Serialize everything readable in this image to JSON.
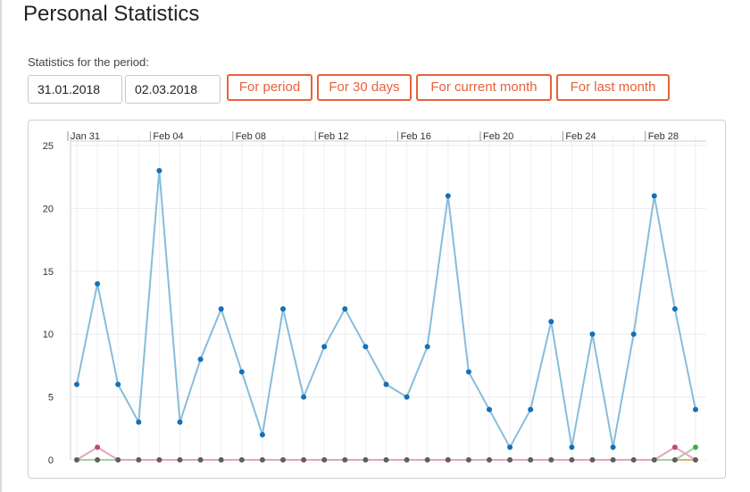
{
  "page": {
    "title": "Personal Statistics"
  },
  "filter": {
    "label": "Statistics for the period:",
    "date_from": "31.01.2018",
    "date_to": "02.03.2018",
    "buttons": {
      "for_period": "For period",
      "for_30_days": "For 30 days",
      "for_current_month": "For current month",
      "for_last_month": "For last month"
    }
  },
  "chart_data": {
    "type": "line",
    "title": "",
    "xlabel": "",
    "ylabel": "",
    "x_axis_position": "top",
    "ylim": [
      0,
      25
    ],
    "y_ticks": [
      0,
      5,
      10,
      15,
      20,
      25
    ],
    "grid": true,
    "x": [
      "Jan 31",
      "Feb 01",
      "Feb 02",
      "Feb 03",
      "Feb 04",
      "Feb 05",
      "Feb 06",
      "Feb 07",
      "Feb 08",
      "Feb 09",
      "Feb 10",
      "Feb 11",
      "Feb 12",
      "Feb 13",
      "Feb 14",
      "Feb 15",
      "Feb 16",
      "Feb 17",
      "Feb 18",
      "Feb 19",
      "Feb 20",
      "Feb 21",
      "Feb 22",
      "Feb 23",
      "Feb 24",
      "Feb 25",
      "Feb 26",
      "Feb 27",
      "Feb 28",
      "Mar 01",
      "Mar 02"
    ],
    "x_tick_labels": [
      {
        "index": 0,
        "label": "Jan 31"
      },
      {
        "index": 4,
        "label": "Feb 04"
      },
      {
        "index": 8,
        "label": "Feb 08"
      },
      {
        "index": 12,
        "label": "Feb 12"
      },
      {
        "index": 16,
        "label": "Feb 16"
      },
      {
        "index": 20,
        "label": "Feb 20"
      },
      {
        "index": 24,
        "label": "Feb 24"
      },
      {
        "index": 28,
        "label": "Feb 28"
      }
    ],
    "series": [
      {
        "line_color": "#86bddb",
        "point_color": "#1470b8",
        "values": [
          6,
          14,
          6,
          3,
          23,
          3,
          8,
          12,
          7,
          2,
          12,
          5,
          9,
          12,
          9,
          6,
          5,
          9,
          21,
          7,
          4,
          1,
          4,
          11,
          1,
          10,
          1,
          10,
          21,
          12,
          4
        ]
      },
      {
        "line_color": "#e8a3c0",
        "point_color": "#c2467e",
        "values": [
          0,
          1,
          0,
          0,
          0,
          0,
          0,
          0,
          0,
          0,
          0,
          0,
          0,
          0,
          0,
          0,
          0,
          0,
          0,
          0,
          0,
          0,
          0,
          0,
          0,
          0,
          0,
          0,
          0,
          1,
          0
        ]
      },
      {
        "line_color": "#9fd39f",
        "point_color": "#33b24a",
        "values": [
          0,
          0,
          0,
          0,
          0,
          0,
          0,
          0,
          0,
          0,
          0,
          0,
          0,
          0,
          0,
          0,
          0,
          0,
          0,
          0,
          0,
          0,
          0,
          0,
          0,
          0,
          0,
          0,
          0,
          0,
          1
        ]
      },
      {
        "line_color": "#d2b46a",
        "point_color": "#5e5e5e",
        "values": [
          0,
          0,
          0,
          0,
          0,
          0,
          0,
          0,
          0,
          0,
          0,
          0,
          0,
          0,
          0,
          0,
          0,
          0,
          0,
          0,
          0,
          0,
          0,
          0,
          0,
          0,
          0,
          0,
          0,
          0,
          0
        ]
      }
    ]
  }
}
